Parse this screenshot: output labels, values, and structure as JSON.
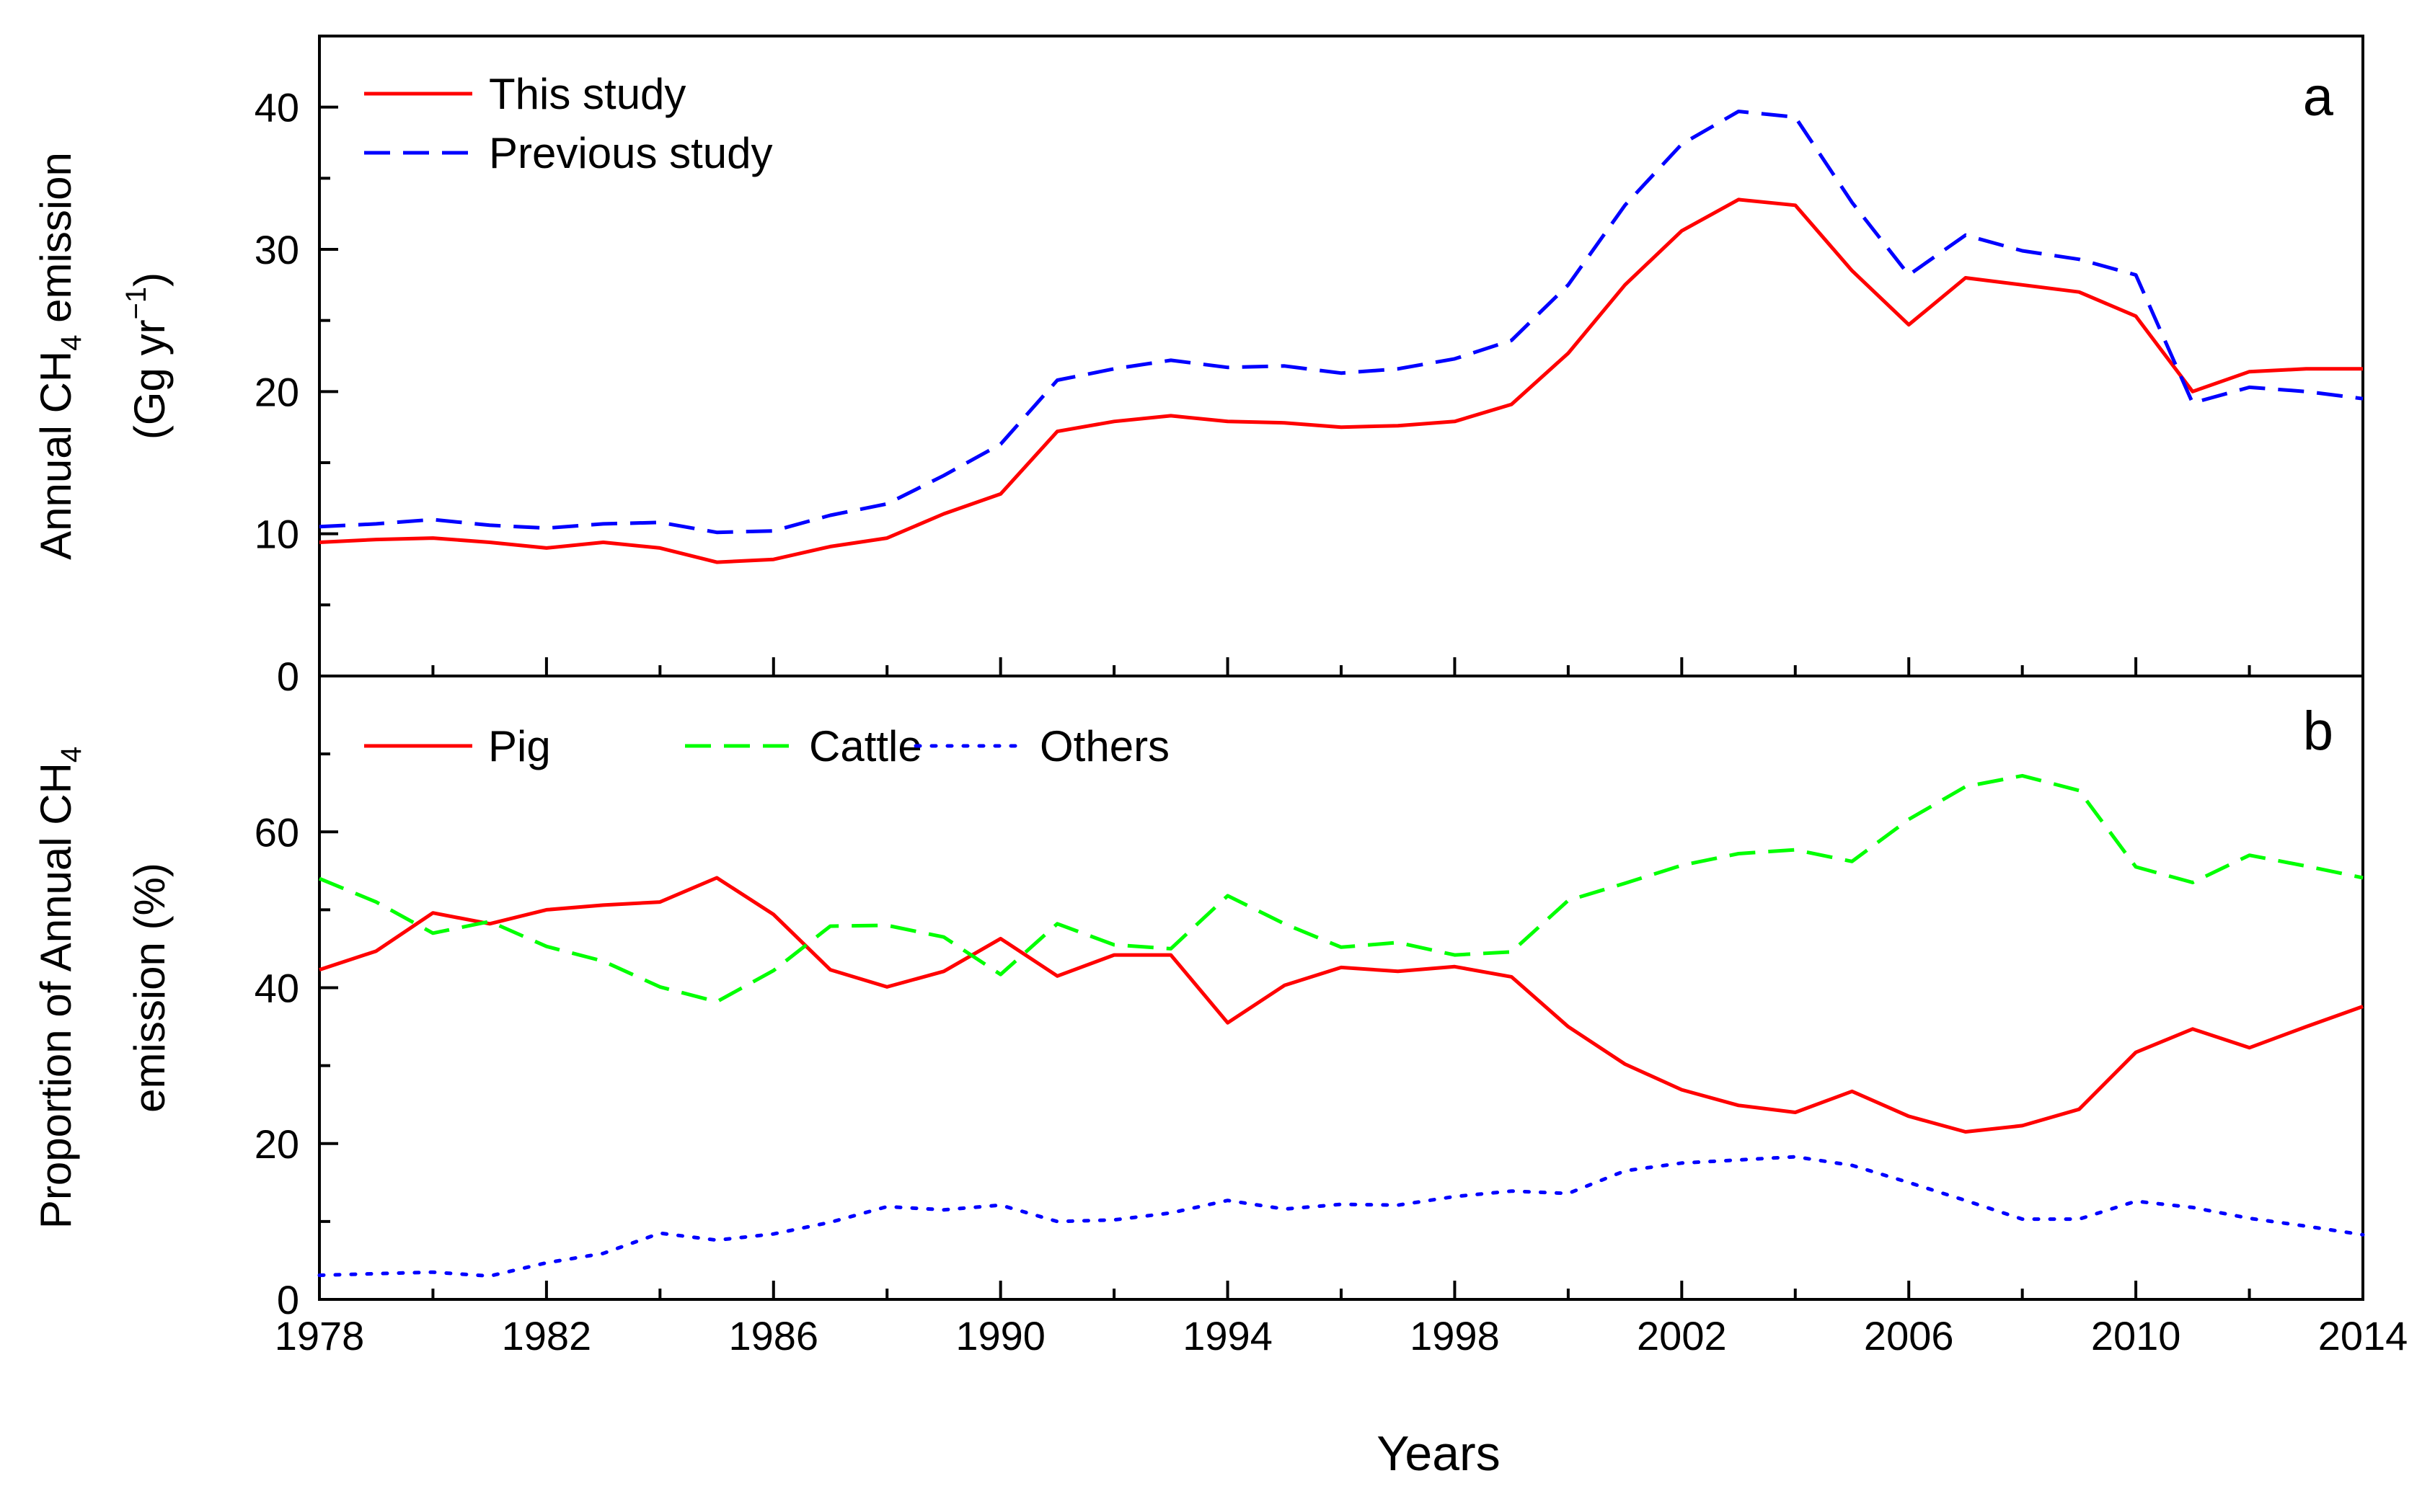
{
  "colors": {
    "red": "#ff0000",
    "green": "#00ff00",
    "blue": "#0000ff",
    "axis": "#000000"
  },
  "xlabel": "Years",
  "chart_data": [
    {
      "type": "line",
      "panel_label": "a",
      "ylabel_parts": [
        "Annual CH",
        "4",
        " emission"
      ],
      "ylabel2_parts": [
        "(Gg yr",
        "−1",
        ")"
      ],
      "xlim": [
        1978,
        2014
      ],
      "ylim": [
        0,
        45
      ],
      "xticks": [
        1978,
        1982,
        1986,
        1990,
        1994,
        1998,
        2002,
        2006,
        2010,
        2014
      ],
      "yticks": [
        0,
        10,
        20,
        30,
        40
      ],
      "grid": false,
      "legend_position": "top-left",
      "x": [
        1978,
        1979,
        1980,
        1981,
        1982,
        1983,
        1984,
        1985,
        1986,
        1987,
        1988,
        1989,
        1990,
        1991,
        1992,
        1993,
        1994,
        1995,
        1996,
        1997,
        1998,
        1999,
        2000,
        2001,
        2002,
        2003,
        2004,
        2005,
        2006,
        2007,
        2008,
        2009,
        2010,
        2011,
        2012,
        2013,
        2014
      ],
      "series": [
        {
          "name": "This study",
          "style": "solid",
          "color": "#ff0000",
          "values": [
            9.4,
            9.6,
            9.7,
            9.4,
            9.0,
            9.4,
            9.0,
            8.0,
            8.2,
            9.1,
            9.7,
            11.4,
            12.8,
            17.2,
            17.9,
            18.3,
            17.9,
            17.8,
            17.5,
            17.6,
            17.9,
            19.1,
            22.7,
            27.5,
            31.3,
            33.5,
            33.1,
            28.5,
            24.7,
            28.0,
            27.5,
            27.0,
            25.3,
            20.0,
            21.4,
            21.6,
            21.6
          ]
        },
        {
          "name": "Previous study",
          "style": "dashed",
          "color": "#0000ff",
          "values": [
            10.5,
            10.7,
            11.0,
            10.6,
            10.4,
            10.7,
            10.8,
            10.1,
            10.2,
            11.3,
            12.1,
            14.1,
            16.3,
            20.8,
            21.6,
            22.2,
            21.7,
            21.8,
            21.3,
            21.6,
            22.3,
            23.6,
            27.5,
            33.1,
            37.4,
            39.7,
            39.3,
            33.3,
            28.2,
            31.0,
            29.9,
            29.3,
            28.2,
            19.2,
            20.3,
            20.0,
            19.5
          ]
        }
      ]
    },
    {
      "type": "line",
      "panel_label": "b",
      "ylabel_parts": [
        "Proportion of Annual CH",
        "4"
      ],
      "ylabel2_parts": [
        "emission (%)"
      ],
      "xlim": [
        1978,
        2014
      ],
      "ylim": [
        0,
        80
      ],
      "xticks": [
        1978,
        1982,
        1986,
        1990,
        1994,
        1998,
        2002,
        2006,
        2010,
        2014
      ],
      "yticks": [
        0,
        20,
        40,
        60
      ],
      "grid": false,
      "legend_position": "top-left",
      "x": [
        1978,
        1979,
        1980,
        1981,
        1982,
        1983,
        1984,
        1985,
        1986,
        1987,
        1988,
        1989,
        1990,
        1991,
        1992,
        1993,
        1994,
        1995,
        1996,
        1997,
        1998,
        1999,
        2000,
        2001,
        2002,
        2003,
        2004,
        2005,
        2006,
        2007,
        2008,
        2009,
        2010,
        2011,
        2012,
        2013,
        2014
      ],
      "series": [
        {
          "name": "Pig",
          "style": "solid",
          "color": "#ff0000",
          "values": [
            42.3,
            44.7,
            49.6,
            48.2,
            50.0,
            50.6,
            51.0,
            54.1,
            49.4,
            42.3,
            40.1,
            42.1,
            46.3,
            41.5,
            44.2,
            44.2,
            35.5,
            40.3,
            42.6,
            42.1,
            42.7,
            41.4,
            35.0,
            30.2,
            26.9,
            24.9,
            24.0,
            26.7,
            23.5,
            21.5,
            22.3,
            24.4,
            31.7,
            34.7,
            32.3,
            35.0,
            37.6
          ]
        },
        {
          "name": "Cattle",
          "style": "dashed",
          "color": "#00ff00",
          "values": [
            54.0,
            51.0,
            47.0,
            48.5,
            45.3,
            43.4,
            40.1,
            38.2,
            42.2,
            47.9,
            48.0,
            46.5,
            41.7,
            48.2,
            45.5,
            45.0,
            51.8,
            48.2,
            45.2,
            45.8,
            44.2,
            44.6,
            51.2,
            53.4,
            55.7,
            57.2,
            57.7,
            56.2,
            61.6,
            65.8,
            67.2,
            65.3,
            55.5,
            53.5,
            57.0,
            55.6,
            54.1
          ]
        },
        {
          "name": "Others",
          "style": "dotted",
          "color": "#0000ff",
          "values": [
            3.1,
            3.3,
            3.5,
            3.0,
            4.7,
            5.9,
            8.5,
            7.6,
            8.4,
            9.9,
            11.9,
            11.5,
            12.1,
            10.0,
            10.2,
            11.1,
            12.7,
            11.6,
            12.2,
            12.1,
            13.2,
            13.9,
            13.6,
            16.5,
            17.5,
            17.9,
            18.3,
            17.2,
            15.0,
            12.7,
            10.3,
            10.3,
            12.6,
            11.8,
            10.4,
            9.4,
            8.3
          ]
        }
      ]
    }
  ]
}
